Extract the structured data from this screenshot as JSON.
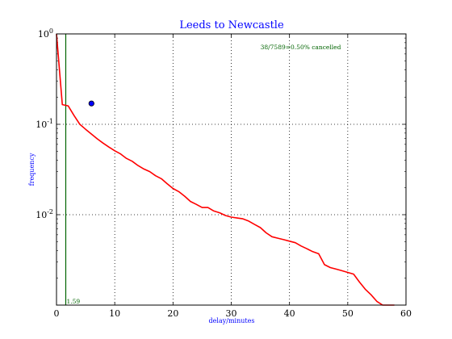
{
  "chart_data": {
    "type": "line",
    "title": "Leeds to Newcastle",
    "xlabel": "delay/minutes",
    "ylabel": "frequency",
    "xlim": [
      0,
      60
    ],
    "ylim": [
      0.001,
      1
    ],
    "yscale": "log",
    "grid": true,
    "x_ticks": [
      "0",
      "10",
      "20",
      "30",
      "40",
      "50",
      "60"
    ],
    "y_ticks": [
      {
        "value": 1,
        "base": "10",
        "exp": "0"
      },
      {
        "value": 0.1,
        "base": "10",
        "exp": "-1"
      },
      {
        "value": 0.01,
        "base": "10",
        "exp": "-2"
      }
    ],
    "series": [
      {
        "color": "#ff0000",
        "x": [
          0,
          1,
          2,
          3,
          4,
          5,
          6,
          7,
          8,
          9,
          10,
          11,
          12,
          13,
          14,
          15,
          16,
          17,
          18,
          19,
          20,
          21,
          22,
          23,
          24,
          25,
          26,
          27,
          28,
          29,
          30,
          31,
          32,
          33,
          34,
          35,
          36,
          37,
          38,
          39,
          40,
          41,
          42,
          43,
          44,
          45,
          46,
          47,
          48,
          49,
          50,
          51,
          52,
          53,
          54,
          55,
          56,
          57,
          58
        ],
        "y": [
          1.0,
          0.165,
          0.16,
          0.125,
          0.1,
          0.088,
          0.078,
          0.069,
          0.062,
          0.056,
          0.051,
          0.047,
          0.042,
          0.039,
          0.035,
          0.032,
          0.03,
          0.027,
          0.025,
          0.022,
          0.0195,
          0.018,
          0.016,
          0.014,
          0.013,
          0.012,
          0.012,
          0.011,
          0.0105,
          0.0098,
          0.0094,
          0.0092,
          0.009,
          0.0085,
          0.0078,
          0.0072,
          0.0063,
          0.0057,
          0.0055,
          0.0053,
          0.0051,
          0.0049,
          0.0045,
          0.0042,
          0.0039,
          0.0037,
          0.0028,
          0.0026,
          0.0025,
          0.0024,
          0.0023,
          0.0022,
          0.0018,
          0.0015,
          0.0013,
          0.0011,
          0.001,
          0.001,
          0.001
        ]
      }
    ],
    "vline": {
      "x": 1.59,
      "label": "1.59",
      "color": "#006400"
    },
    "marker": {
      "x": 6,
      "y": 0.17,
      "color": "#0000ff"
    },
    "annotation": {
      "text": "38/7589=0.50% cancelled",
      "x": 35,
      "y": 0.68,
      "color": "#006400"
    }
  }
}
